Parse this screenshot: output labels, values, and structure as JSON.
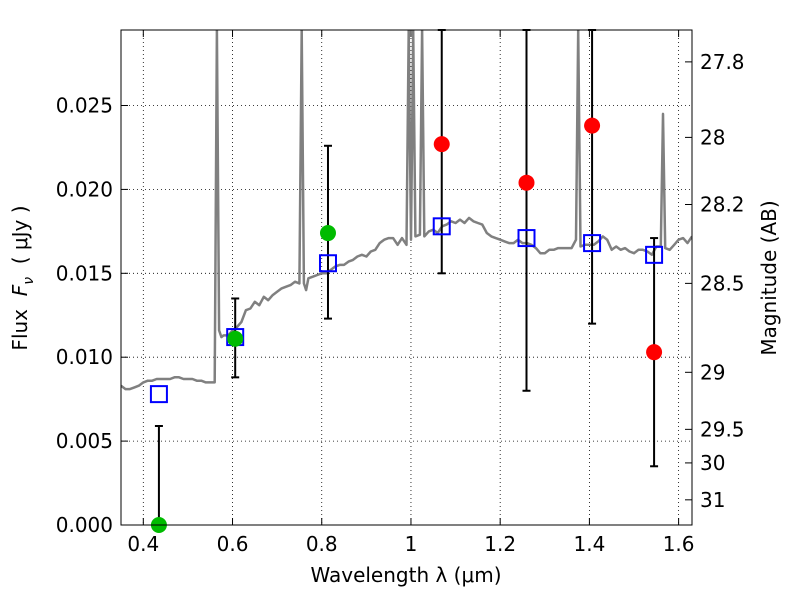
{
  "chart_data": {
    "type": "scatter",
    "xlabel": "Wavelength  λ (μm)",
    "ylabel": "Flux  F_ν  ( μJy )",
    "ylabel_parts": {
      "pre": "Flux  ",
      "main": "F",
      "sub": "ν",
      "post": "  ( μJy )"
    },
    "y2label": "Magnitude (AB)",
    "xlim": [
      0.35,
      1.63
    ],
    "ylim": [
      0.0,
      0.0295
    ],
    "grid": true,
    "x_ticks": [
      {
        "value": 0.4,
        "label": "0.4"
      },
      {
        "value": 0.6,
        "label": "0.6"
      },
      {
        "value": 0.8,
        "label": "0.8"
      },
      {
        "value": 1.0,
        "label": "1"
      },
      {
        "value": 1.2,
        "label": "1.2"
      },
      {
        "value": 1.4,
        "label": "1.4"
      },
      {
        "value": 1.6,
        "label": "1.6"
      }
    ],
    "y_ticks": [
      {
        "value": 0.0,
        "label": "0.000"
      },
      {
        "value": 0.005,
        "label": "0.005"
      },
      {
        "value": 0.01,
        "label": "0.010"
      },
      {
        "value": 0.015,
        "label": "0.015"
      },
      {
        "value": 0.02,
        "label": "0.020"
      },
      {
        "value": 0.025,
        "label": "0.025"
      }
    ],
    "y2_ticks": [
      {
        "flux": 0.0276,
        "label": "27.8"
      },
      {
        "flux": 0.0231,
        "label": "28"
      },
      {
        "flux": 0.0191,
        "label": "28.2"
      },
      {
        "flux": 0.0144,
        "label": "28.5"
      },
      {
        "flux": 0.0091,
        "label": "29"
      },
      {
        "flux": 0.0057,
        "label": "29.5"
      },
      {
        "flux": 0.0037,
        "label": "30"
      },
      {
        "flux": 0.0015,
        "label": "31"
      }
    ],
    "series": [
      {
        "kind": "model_spectrum",
        "color": "#808080",
        "x": [
          0.35,
          0.36,
          0.37,
          0.38,
          0.39,
          0.4,
          0.41,
          0.42,
          0.43,
          0.44,
          0.45,
          0.46,
          0.47,
          0.48,
          0.49,
          0.5,
          0.51,
          0.52,
          0.53,
          0.54,
          0.55,
          0.56,
          0.565,
          0.57,
          0.575,
          0.58,
          0.59,
          0.6,
          0.61,
          0.62,
          0.63,
          0.64,
          0.65,
          0.66,
          0.67,
          0.68,
          0.69,
          0.7,
          0.71,
          0.72,
          0.73,
          0.74,
          0.75,
          0.755,
          0.76,
          0.765,
          0.77,
          0.78,
          0.79,
          0.8,
          0.81,
          0.82,
          0.83,
          0.84,
          0.85,
          0.86,
          0.87,
          0.88,
          0.89,
          0.9,
          0.91,
          0.92,
          0.93,
          0.94,
          0.95,
          0.96,
          0.97,
          0.98,
          0.99,
          0.995,
          1.0,
          1.005,
          1.01,
          1.02,
          1.025,
          1.03,
          1.04,
          1.05,
          1.06,
          1.07,
          1.08,
          1.09,
          1.1,
          1.11,
          1.12,
          1.13,
          1.14,
          1.15,
          1.16,
          1.17,
          1.18,
          1.19,
          1.2,
          1.21,
          1.22,
          1.23,
          1.24,
          1.25,
          1.26,
          1.27,
          1.28,
          1.29,
          1.3,
          1.31,
          1.32,
          1.33,
          1.34,
          1.35,
          1.36,
          1.37,
          1.375,
          1.38,
          1.39,
          1.4,
          1.41,
          1.42,
          1.43,
          1.44,
          1.45,
          1.46,
          1.47,
          1.48,
          1.49,
          1.5,
          1.51,
          1.52,
          1.53,
          1.54,
          1.55,
          1.56,
          1.565,
          1.57,
          1.58,
          1.59,
          1.6,
          1.61,
          1.62,
          1.63
        ],
        "y": [
          0.0083,
          0.0081,
          0.0081,
          0.0082,
          0.0083,
          0.0085,
          0.0086,
          0.0086,
          0.0087,
          0.0087,
          0.0087,
          0.0087,
          0.0088,
          0.0088,
          0.0087,
          0.0087,
          0.0087,
          0.0086,
          0.0086,
          0.0085,
          0.0085,
          0.0085,
          0.0295,
          0.0116,
          0.0112,
          0.0113,
          0.0113,
          0.0116,
          0.0118,
          0.0121,
          0.0128,
          0.0129,
          0.0133,
          0.0131,
          0.0136,
          0.0134,
          0.0137,
          0.0139,
          0.0141,
          0.0142,
          0.0143,
          0.0145,
          0.0144,
          0.0295,
          0.0144,
          0.014,
          0.0147,
          0.0148,
          0.0149,
          0.015,
          0.015,
          0.0152,
          0.0154,
          0.0155,
          0.0155,
          0.0157,
          0.0158,
          0.016,
          0.0161,
          0.016,
          0.0163,
          0.0164,
          0.0168,
          0.017,
          0.0171,
          0.0171,
          0.0167,
          0.0171,
          0.0167,
          0.0295,
          0.017,
          0.0295,
          0.0172,
          0.0173,
          0.0295,
          0.0172,
          0.0175,
          0.0176,
          0.0174,
          0.0178,
          0.0179,
          0.0181,
          0.018,
          0.0182,
          0.018,
          0.0183,
          0.0181,
          0.018,
          0.0179,
          0.0174,
          0.0172,
          0.0171,
          0.017,
          0.0169,
          0.0168,
          0.0168,
          0.017,
          0.0168,
          0.0168,
          0.0167,
          0.0165,
          0.0162,
          0.0162,
          0.0164,
          0.0164,
          0.0165,
          0.0165,
          0.0165,
          0.0165,
          0.017,
          0.0295,
          0.0166,
          0.0167,
          0.0167,
          0.0167,
          0.0169,
          0.0172,
          0.017,
          0.0164,
          0.0166,
          0.0164,
          0.0165,
          0.0163,
          0.0162,
          0.0164,
          0.0164,
          0.0163,
          0.0161,
          0.0166,
          0.0166,
          0.0245,
          0.0165,
          0.0164,
          0.0167,
          0.017,
          0.0171,
          0.0168,
          0.0172
        ]
      },
      {
        "kind": "model_photometry",
        "marker": "open-square",
        "color": "#0000ff",
        "x": [
          0.435,
          0.606,
          0.814,
          1.069,
          1.259,
          1.406,
          1.545
        ],
        "y": [
          0.0078,
          0.0112,
          0.0156,
          0.0178,
          0.0171,
          0.0168,
          0.0161
        ]
      },
      {
        "kind": "observed_detection",
        "marker": "filled-circle",
        "color": "#00bb00",
        "x": [
          0.435,
          0.606,
          0.814
        ],
        "y": [
          0.0,
          0.0111,
          0.0174
        ],
        "yerr_low": [
          0.0,
          0.0023,
          0.0051
        ],
        "yerr_high": [
          0.0059,
          0.0024,
          0.0052
        ]
      },
      {
        "kind": "observed_low_significance",
        "marker": "filled-circle",
        "color": "#ff0000",
        "x": [
          1.069,
          1.259,
          1.406,
          1.545
        ],
        "y": [
          0.0227,
          0.0204,
          0.0238,
          0.0103
        ],
        "yerr_low": [
          0.0077,
          0.0124,
          0.0118,
          0.0068
        ],
        "yerr_high": [
          0.0068,
          0.0091,
          0.0057,
          0.0068
        ]
      }
    ]
  }
}
